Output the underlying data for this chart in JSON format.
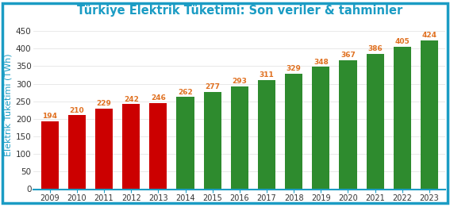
{
  "title": "Türkiye Elektrik Tüketimi: Son veriler & tahminler",
  "title_color": "#1B9CC4",
  "ylabel": "Elektrik Tüketimi (TWh)",
  "ylabel_color": "#1B9CC4",
  "years": [
    2009,
    2010,
    2011,
    2012,
    2013,
    2014,
    2015,
    2016,
    2017,
    2018,
    2019,
    2020,
    2021,
    2022,
    2023
  ],
  "values": [
    194,
    210,
    229,
    242,
    246,
    262,
    277,
    293,
    311,
    329,
    348,
    367,
    386,
    405,
    424
  ],
  "bar_colors": [
    "#CC0000",
    "#CC0000",
    "#CC0000",
    "#CC0000",
    "#CC0000",
    "#2E8B2E",
    "#2E8B2E",
    "#2E8B2E",
    "#2E8B2E",
    "#2E8B2E",
    "#2E8B2E",
    "#2E8B2E",
    "#2E8B2E",
    "#2E8B2E",
    "#2E8B2E"
  ],
  "ylim": [
    0,
    480
  ],
  "yticks": [
    0,
    50,
    100,
    150,
    200,
    250,
    300,
    350,
    400,
    450
  ],
  "background_color": "#FFFFFF",
  "border_color": "#1B9CC4",
  "label_fontsize": 6.5,
  "title_fontsize": 10.5,
  "ylabel_fontsize": 8,
  "xlabel_fontsize": 7,
  "tick_label_fontsize": 7.5,
  "label_color": "#E07020",
  "bar_width": 0.65
}
